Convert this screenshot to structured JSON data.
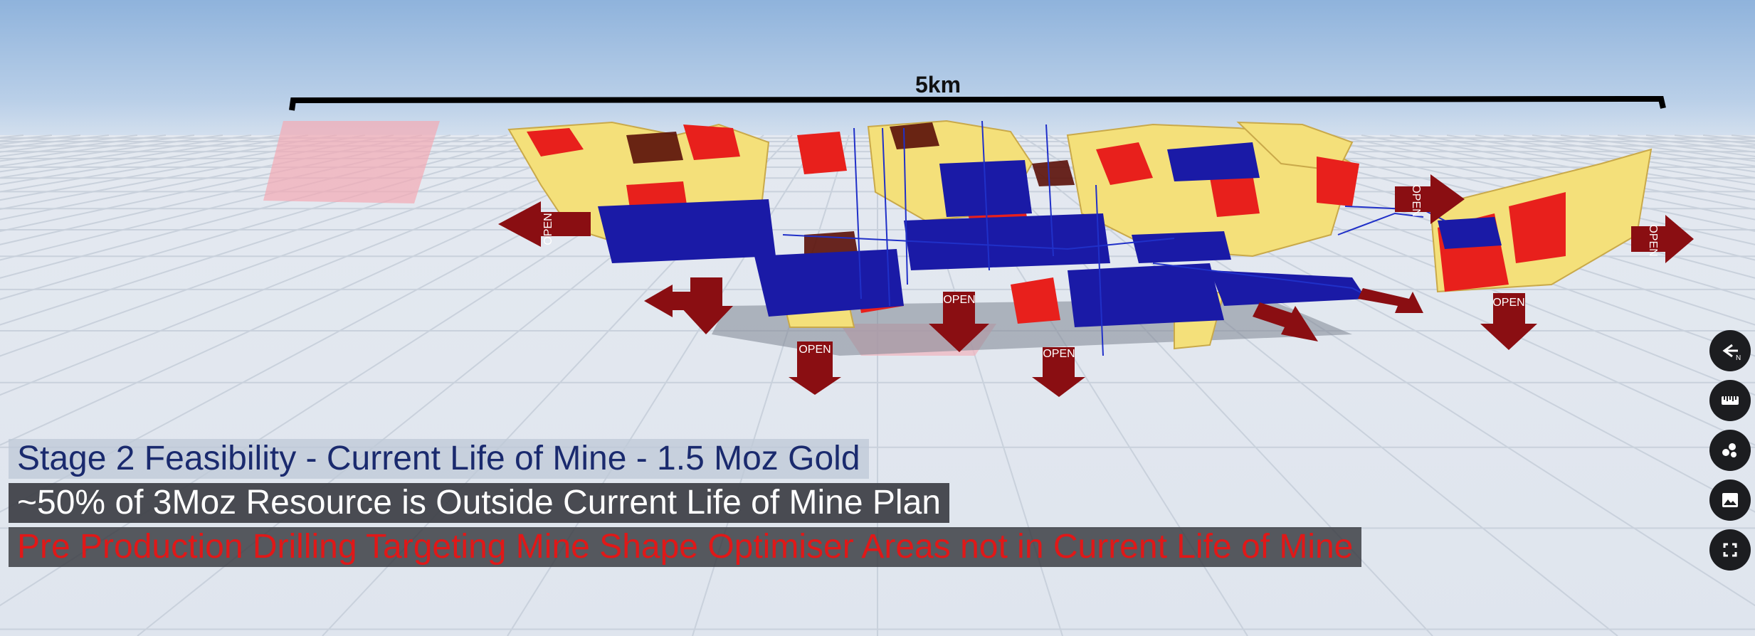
{
  "scale_bar": {
    "label": "5km"
  },
  "captions": [
    {
      "text": "Stage 2 Feasibility - Current Life of Mine - 1.5 Moz Gold",
      "color": "#1a2a6e"
    },
    {
      "text": "~50% of 3Moz Resource is Outside Current Life of Mine Plan",
      "color": "#ffffff"
    },
    {
      "text": "Pre Production Drilling Targeting Mine Shape Optimiser Areas not in Current Life of Mine",
      "color": "#e01818"
    }
  ],
  "arrow_label": "OPEN",
  "toolbar": {
    "buttons": [
      {
        "name": "north-arrow-button",
        "icon": "north-arrow-icon",
        "label": "N"
      },
      {
        "name": "measure-button",
        "icon": "ruler-icon"
      },
      {
        "name": "layers-button",
        "icon": "layers-icon"
      },
      {
        "name": "screenshot-button",
        "icon": "image-icon"
      },
      {
        "name": "fullscreen-button",
        "icon": "fullscreen-icon"
      }
    ]
  },
  "colors": {
    "ore_high": "#e8201c",
    "ore_mid": "#f4e07a",
    "ore_low": "#1a1aa6",
    "drill_trace": "#2030c8",
    "arrow": "#8a0e12",
    "ui_button": "#1c1d20"
  }
}
